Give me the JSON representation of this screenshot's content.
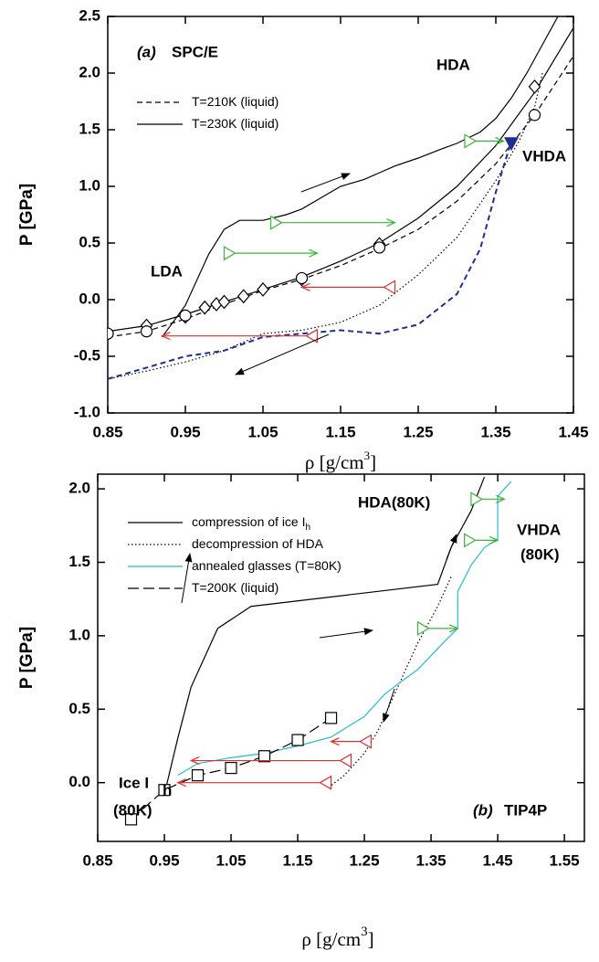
{
  "chart_data": [
    {
      "type": "line",
      "xlabel": "ρ [g/cm",
      "xlabel_sup": "3",
      "xlabel_end": "]",
      "ylabel": "P [GPa]",
      "xlim": [
        0.85,
        1.45
      ],
      "ylim": [
        -1.0,
        2.5
      ],
      "xticks": [
        0.85,
        0.95,
        1.05,
        1.15,
        1.25,
        1.35,
        1.45
      ],
      "yticks": [
        {
          "value": -1.0,
          "label": "-1.0"
        },
        -0.5,
        {
          "value": 0.0,
          "label": "0.0"
        },
        0.5,
        {
          "value": 1.0,
          "label": "1.0"
        },
        1.5,
        {
          "value": 2.0,
          "label": "2.0"
        },
        2.5
      ],
      "annotations": [
        "(a)",
        "SPC/E",
        "HDA",
        "VHDA",
        "LDA"
      ],
      "series": [
        {
          "name": "T=210K (liquid)",
          "color": "#000000",
          "dash": "dashed",
          "x": [
            0.85,
            0.9,
            0.95,
            1.0,
            1.05,
            1.1,
            1.15,
            1.2,
            1.25,
            1.3,
            1.35,
            1.4,
            1.45
          ],
          "values": [
            -0.33,
            -0.28,
            -0.17,
            -0.04,
            0.08,
            0.18,
            0.3,
            0.45,
            0.62,
            0.87,
            1.2,
            1.63,
            2.15
          ]
        },
        {
          "name": "T=230K (liquid)",
          "color": "#000000",
          "dash": "solid",
          "x": [
            0.85,
            0.9,
            0.95,
            1.0,
            1.05,
            1.1,
            1.15,
            1.2,
            1.25,
            1.3,
            1.35,
            1.4,
            1.45
          ],
          "values": [
            -0.28,
            -0.23,
            -0.13,
            -0.02,
            0.09,
            0.2,
            0.34,
            0.5,
            0.72,
            1.0,
            1.36,
            1.83,
            2.4
          ]
        },
        {
          "color": "#000000",
          "dash": "solid",
          "x": [
            0.92,
            0.95,
            0.98,
            1.0,
            1.02,
            1.05,
            1.08,
            1.1,
            1.12,
            1.15,
            1.18,
            1.2,
            1.22,
            1.25,
            1.28,
            1.3,
            1.33,
            1.35,
            1.37,
            1.39,
            1.41,
            1.43
          ],
          "values": [
            -0.33,
            -0.05,
            0.4,
            0.62,
            0.7,
            0.7,
            0.75,
            0.8,
            0.88,
            1.0,
            1.06,
            1.12,
            1.18,
            1.25,
            1.33,
            1.38,
            1.48,
            1.6,
            1.78,
            2.0,
            2.25,
            2.5
          ]
        },
        {
          "color": "#000000",
          "dash": "dotted",
          "x": [
            1.41,
            1.4,
            1.38,
            1.35,
            1.3,
            1.27,
            1.25,
            1.2,
            1.15,
            1.1,
            1.05,
            1.0,
            0.95,
            0.9,
            0.85
          ],
          "values": [
            2.0,
            1.7,
            1.4,
            1.05,
            0.55,
            0.35,
            0.22,
            -0.05,
            -0.2,
            -0.27,
            -0.3,
            -0.45,
            -0.55,
            -0.63,
            -0.7
          ]
        },
        {
          "color": "#1f2f8f",
          "dash": "dashed",
          "width": 2,
          "x": [
            0.85,
            0.9,
            0.95,
            1.0,
            1.05,
            1.1,
            1.15,
            1.2,
            1.25,
            1.3,
            1.33,
            1.35,
            1.37
          ],
          "values": [
            -0.7,
            -0.6,
            -0.5,
            -0.45,
            -0.33,
            -0.3,
            -0.27,
            -0.3,
            -0.22,
            0.05,
            0.45,
            0.95,
            1.4
          ]
        },
        {
          "color": "#000000",
          "marker": "diamond",
          "x": [
            0.85,
            0.9,
            0.95,
            0.975,
            0.99,
            1.0,
            1.025,
            1.05,
            1.1,
            1.2,
            1.4
          ],
          "values": [
            -0.3,
            -0.23,
            -0.15,
            -0.07,
            -0.04,
            -0.02,
            0.03,
            0.09,
            0.18,
            0.49,
            1.88
          ]
        },
        {
          "color": "#000000",
          "marker": "circle",
          "x": [
            0.85,
            0.9,
            0.95,
            1.1,
            1.2,
            1.4
          ],
          "values": [
            -0.3,
            -0.28,
            -0.14,
            0.19,
            0.46,
            1.63
          ]
        },
        {
          "color": "#1f2f8f",
          "marker": "triangle-down",
          "x": [
            1.37
          ],
          "values": [
            1.38
          ]
        }
      ],
      "arrows": [
        {
          "x": [
            1.06,
            1.22
          ],
          "y": 0.68,
          "color": "#3cb43c"
        },
        {
          "x": [
            1.0,
            1.12
          ],
          "y": 0.41,
          "color": "#3cb43c"
        },
        {
          "x": [
            1.31,
            1.36
          ],
          "y": 1.4,
          "color": "#3cb43c"
        },
        {
          "x": [
            1.22,
            1.1
          ],
          "y": 0.11,
          "color": "#e03030"
        },
        {
          "x": [
            1.12,
            0.92
          ],
          "y": -0.32,
          "color": "#e03030"
        }
      ]
    },
    {
      "type": "line",
      "xlabel": "ρ [g/cm",
      "xlabel_sup": "3",
      "xlabel_end": "]",
      "ylabel": "P [GPa]",
      "xlim": [
        0.85,
        1.58
      ],
      "ylim": [
        -0.4,
        2.1
      ],
      "xticks": [
        0.85,
        0.95,
        1.05,
        1.15,
        1.25,
        1.35,
        1.45,
        1.55
      ],
      "yticks": [
        {
          "value": 0.0,
          "label": "0.0"
        },
        0.5,
        {
          "value": 1.0,
          "label": "1.0"
        },
        1.5,
        {
          "value": 2.0,
          "label": "2.0"
        }
      ],
      "annotations": [
        "HDA(80K)",
        "VHDA",
        "(80K)",
        "Ice I",
        "h",
        "(80K)",
        "(b)",
        "TIP4P"
      ],
      "series": [
        {
          "name": "compression of ice I",
          "name_sub": "h",
          "color": "#000000",
          "dash": "solid",
          "x": [
            0.95,
            0.97,
            0.99,
            1.03,
            1.08,
            1.36,
            1.38,
            1.41,
            1.43
          ],
          "values": [
            -0.08,
            0.3,
            0.65,
            1.05,
            1.2,
            1.35,
            1.6,
            1.85,
            2.08
          ]
        },
        {
          "name": "decompression of HDA",
          "color": "#000000",
          "dash": "dotted",
          "x": [
            1.38,
            1.36,
            1.33,
            1.3,
            1.27,
            1.25,
            1.22,
            1.2
          ],
          "values": [
            1.4,
            1.2,
            0.95,
            0.65,
            0.35,
            0.2,
            0.05,
            -0.02
          ]
        },
        {
          "name": "annealed glasses (T=80K)",
          "color": "#22bcd0",
          "dash": "solid",
          "x": [
            0.97,
            1.0,
            1.05,
            1.1,
            1.15,
            1.2,
            1.25,
            1.28,
            1.3,
            1.33,
            1.37,
            1.39,
            1.39,
            1.41,
            1.43,
            1.45,
            1.45,
            1.47
          ],
          "values": [
            0.05,
            0.13,
            0.17,
            0.2,
            0.25,
            0.31,
            0.45,
            0.6,
            0.67,
            0.77,
            0.96,
            1.05,
            1.3,
            1.48,
            1.6,
            1.66,
            1.95,
            2.05
          ]
        },
        {
          "name": "T=200K (liquid)",
          "color": "#000000",
          "dash": "longdash",
          "marker": "square",
          "x": [
            0.9,
            0.95,
            1.0,
            1.05,
            1.1,
            1.15,
            1.2
          ],
          "values": [
            -0.25,
            -0.05,
            0.05,
            0.1,
            0.18,
            0.29,
            0.44
          ]
        }
      ],
      "arrows": [
        {
          "x": [
            1.33,
            1.39
          ],
          "y": 1.05,
          "color": "#3cb43c"
        },
        {
          "x": [
            1.4,
            1.45
          ],
          "y": 1.65,
          "color": "#3cb43c"
        },
        {
          "x": [
            1.41,
            1.46
          ],
          "y": 1.93,
          "color": "#3cb43c"
        },
        {
          "x": [
            1.26,
            1.2
          ],
          "y": 0.28,
          "color": "#e03030"
        },
        {
          "x": [
            1.23,
            0.99
          ],
          "y": 0.15,
          "color": "#e03030"
        },
        {
          "x": [
            1.2,
            0.97
          ],
          "y": 0.0,
          "color": "#e03030"
        }
      ]
    }
  ]
}
